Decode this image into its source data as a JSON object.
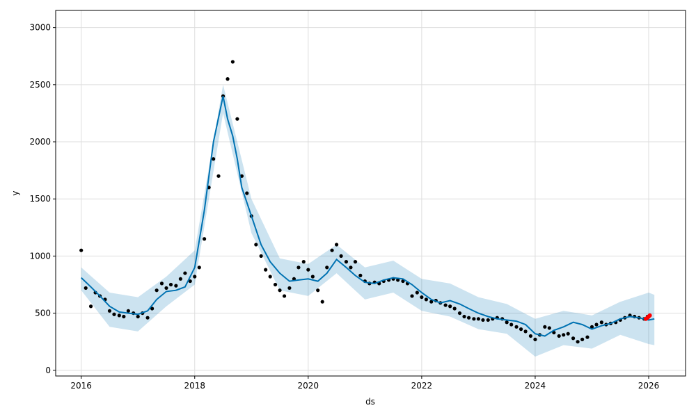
{
  "chart_data": {
    "type": "line",
    "title": "",
    "xlabel": "ds",
    "ylabel": "y",
    "xlim": [
      2015.55,
      2026.65
    ],
    "ylim": [
      -50,
      3150
    ],
    "grid": true,
    "x_ticks": [
      2016,
      2018,
      2020,
      2022,
      2024,
      2026
    ],
    "x_tick_labels": [
      "2016",
      "2018",
      "2020",
      "2022",
      "2024",
      "2026"
    ],
    "y_ticks": [
      0,
      500,
      1000,
      1500,
      2000,
      2500,
      3000
    ],
    "y_tick_labels": [
      "0",
      "500",
      "1000",
      "1500",
      "2000",
      "2500",
      "3000"
    ],
    "colors": {
      "observed": "#000000",
      "forecast_line": "#0072B2",
      "uncertainty_band": "#0072B2",
      "highlight": "#ff0000",
      "grid": "#dddddd"
    },
    "series": [
      {
        "role": "observed",
        "x": [
          2016.0,
          2016.08,
          2016.17,
          2016.25,
          2016.33,
          2016.42,
          2016.5,
          2016.58,
          2016.67,
          2016.75,
          2016.83,
          2016.92,
          2017.0,
          2017.08,
          2017.17,
          2017.25,
          2017.33,
          2017.42,
          2017.5,
          2017.58,
          2017.67,
          2017.75,
          2017.83,
          2017.92,
          2018.0,
          2018.08,
          2018.17,
          2018.25,
          2018.33,
          2018.42,
          2018.5,
          2018.58,
          2018.67,
          2018.75,
          2018.83,
          2018.92,
          2019.0,
          2019.08,
          2019.17,
          2019.25,
          2019.33,
          2019.42,
          2019.5,
          2019.58,
          2019.67,
          2019.75,
          2019.83,
          2019.92,
          2020.0,
          2020.08,
          2020.17,
          2020.25,
          2020.33,
          2020.42,
          2020.5,
          2020.58,
          2020.67,
          2020.75,
          2020.83,
          2020.92,
          2021.0,
          2021.08,
          2021.17,
          2021.25,
          2021.33,
          2021.42,
          2021.5,
          2021.58,
          2021.67,
          2021.75,
          2021.83,
          2021.92,
          2022.0,
          2022.08,
          2022.17,
          2022.25,
          2022.33,
          2022.42,
          2022.5,
          2022.58,
          2022.67,
          2022.75,
          2022.83,
          2022.92,
          2023.0,
          2023.08,
          2023.17,
          2023.25,
          2023.33,
          2023.42,
          2023.5,
          2023.58,
          2023.67,
          2023.75,
          2023.83,
          2023.92,
          2024.0,
          2024.08,
          2024.17,
          2024.25,
          2024.33,
          2024.42,
          2024.5,
          2024.58,
          2024.67,
          2024.75,
          2024.83,
          2024.92,
          2025.0,
          2025.08,
          2025.17,
          2025.25,
          2025.33,
          2025.42,
          2025.5,
          2025.58,
          2025.67,
          2025.75,
          2025.83,
          2025.92,
          2025.98
        ],
        "y": [
          1050,
          720,
          560,
          680,
          650,
          620,
          520,
          490,
          480,
          470,
          520,
          500,
          470,
          500,
          460,
          540,
          700,
          760,
          720,
          750,
          740,
          800,
          850,
          780,
          820,
          900,
          1150,
          1600,
          1850,
          1700,
          2400,
          2550,
          2700,
          2200,
          1700,
          1550,
          1350,
          1100,
          1000,
          880,
          820,
          750,
          700,
          650,
          720,
          800,
          900,
          950,
          880,
          820,
          700,
          600,
          900,
          1050,
          1100,
          1000,
          950,
          900,
          950,
          830,
          780,
          760,
          770,
          760,
          780,
          790,
          800,
          790,
          780,
          760,
          650,
          680,
          640,
          620,
          600,
          610,
          590,
          570,
          560,
          540,
          500,
          470,
          460,
          450,
          450,
          440,
          440,
          450,
          460,
          450,
          420,
          400,
          380,
          360,
          340,
          300,
          270,
          310,
          380,
          370,
          330,
          300,
          310,
          320,
          280,
          250,
          270,
          290,
          380,
          400,
          420,
          400,
          410,
          420,
          440,
          460,
          480,
          470,
          460,
          450,
          470
        ]
      },
      {
        "role": "forecast",
        "x": [
          2016.0,
          2016.17,
          2016.33,
          2016.5,
          2016.67,
          2016.83,
          2017.0,
          2017.17,
          2017.33,
          2017.5,
          2017.67,
          2017.83,
          2018.0,
          2018.17,
          2018.33,
          2018.5,
          2018.58,
          2018.67,
          2018.75,
          2018.83,
          2019.0,
          2019.17,
          2019.33,
          2019.5,
          2019.67,
          2019.83,
          2020.0,
          2020.17,
          2020.33,
          2020.5,
          2020.67,
          2020.83,
          2021.0,
          2021.17,
          2021.33,
          2021.5,
          2021.67,
          2021.83,
          2022.0,
          2022.17,
          2022.33,
          2022.5,
          2022.67,
          2022.83,
          2023.0,
          2023.17,
          2023.33,
          2023.5,
          2023.67,
          2023.83,
          2024.0,
          2024.17,
          2024.33,
          2024.5,
          2024.67,
          2024.83,
          2025.0,
          2025.17,
          2025.33,
          2025.5,
          2025.67,
          2025.83,
          2026.0,
          2026.1
        ],
        "y": [
          810,
          730,
          650,
          560,
          510,
          500,
          490,
          520,
          620,
          690,
          700,
          730,
          900,
          1400,
          2000,
          2400,
          2200,
          2050,
          1850,
          1600,
          1350,
          1100,
          950,
          850,
          780,
          790,
          800,
          780,
          850,
          970,
          900,
          830,
          770,
          760,
          790,
          810,
          800,
          750,
          680,
          620,
          590,
          610,
          580,
          540,
          500,
          470,
          450,
          440,
          430,
          400,
          320,
          300,
          350,
          380,
          420,
          400,
          360,
          390,
          410,
          450,
          470,
          460,
          440,
          450
        ]
      },
      {
        "role": "uncertainty_upper",
        "x": [
          2016.0,
          2016.5,
          2017.0,
          2017.5,
          2018.0,
          2018.5,
          2019.0,
          2019.5,
          2020.0,
          2020.5,
          2021.0,
          2021.5,
          2022.0,
          2022.5,
          2023.0,
          2023.5,
          2024.0,
          2024.5,
          2025.0,
          2025.5,
          2026.0,
          2026.1
        ],
        "y": [
          900,
          680,
          640,
          820,
          1050,
          2500,
          1500,
          980,
          930,
          1100,
          900,
          960,
          800,
          760,
          640,
          580,
          450,
          520,
          480,
          600,
          680,
          660
        ]
      },
      {
        "role": "uncertainty_lower",
        "x": [
          2016.0,
          2016.5,
          2017.0,
          2017.5,
          2018.0,
          2018.5,
          2019.0,
          2019.5,
          2020.0,
          2020.5,
          2021.0,
          2021.5,
          2022.0,
          2022.5,
          2023.0,
          2023.5,
          2024.0,
          2024.5,
          2025.0,
          2025.5,
          2026.0,
          2026.1
        ],
        "y": [
          700,
          380,
          340,
          560,
          750,
          2250,
          1200,
          700,
          650,
          850,
          620,
          680,
          520,
          470,
          360,
          320,
          120,
          220,
          190,
          310,
          230,
          220
        ]
      },
      {
        "role": "highlight",
        "x": [
          2025.95,
          2025.98,
          2026.0,
          2026.02
        ],
        "y": [
          450,
          460,
          470,
          480
        ]
      }
    ]
  }
}
